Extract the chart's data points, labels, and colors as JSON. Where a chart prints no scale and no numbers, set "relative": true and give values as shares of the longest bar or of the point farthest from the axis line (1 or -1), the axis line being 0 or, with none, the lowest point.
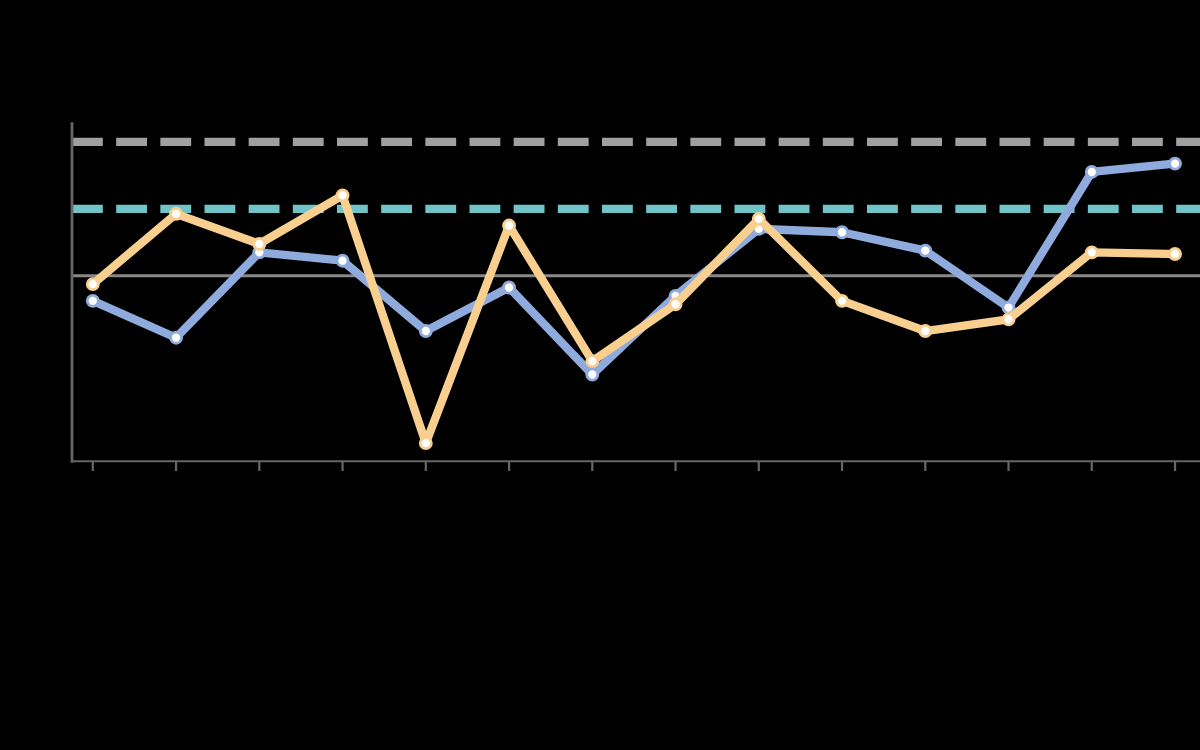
{
  "chart_data": {
    "type": "line",
    "relative": true,
    "marker": "circle",
    "line_style": "solid",
    "categories": [
      null,
      null,
      null,
      null,
      null,
      null,
      null,
      null,
      null,
      null,
      null,
      null,
      null,
      null
    ],
    "series": [
      {
        "color": "#8faadc",
        "values": [
          -0.15,
          -0.37,
          0.14,
          0.09,
          -0.33,
          -0.07,
          -0.59,
          -0.12,
          0.28,
          0.26,
          0.15,
          -0.19,
          0.62,
          0.67
        ]
      },
      {
        "color": "#f8cf8f",
        "values": [
          -0.05,
          0.37,
          0.19,
          0.48,
          -1.0,
          0.3,
          -0.51,
          -0.17,
          0.34,
          -0.15,
          -0.33,
          -0.26,
          0.14,
          0.13
        ]
      }
    ],
    "ref_lines": [
      {
        "axis": "y",
        "value": 0.8,
        "label": null,
        "color": "#a0a0a0",
        "line_style": "dashed"
      },
      {
        "axis": "y",
        "value": 0.4,
        "label": null,
        "color": "#70c4c8",
        "line_style": "dashed"
      }
    ]
  }
}
